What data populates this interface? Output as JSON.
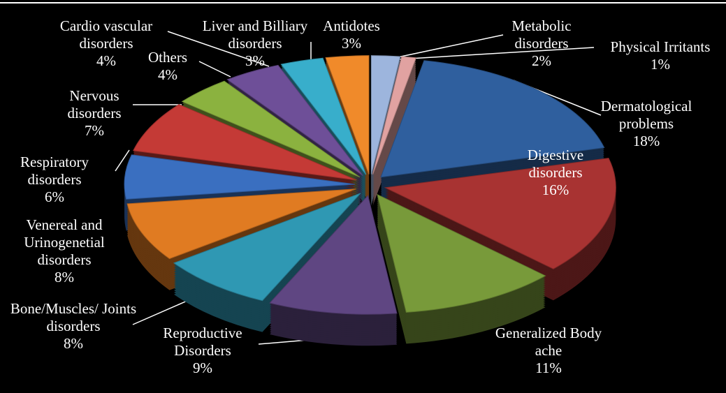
{
  "chart_data": {
    "type": "pie",
    "categories": [
      "Dermatological problems",
      "Digestive disorders",
      "Generalized Body ache",
      "Reproductive Disorders",
      "Bone/Muscles/ Joints disorders",
      "Venereal and Urinogenetial disorders",
      "Respiratory disorders",
      "Nervous disorders",
      "Others",
      "Cardio vascular disorders",
      "Liver and Billiary disorders",
      "Antidotes",
      "Metabolic disorders",
      "Physical Irritants"
    ],
    "values": [
      18,
      16,
      11,
      9,
      8,
      8,
      6,
      7,
      4,
      4,
      3,
      3,
      2,
      1
    ],
    "value_labels": [
      "18%",
      "16%",
      "11%",
      "9%",
      "8%",
      "8%",
      "6%",
      "7%",
      "4%",
      "4%",
      "3%",
      "3%",
      "2%",
      "1%"
    ],
    "colors": [
      "#2f5f9e",
      "#a83332",
      "#789a3a",
      "#5f4682",
      "#2f98b3",
      "#e07b22",
      "#3a6fc0",
      "#c43a36",
      "#8bb23f",
      "#6e4f98",
      "#38aecb",
      "#f08a2a",
      "#9db5dd",
      "#e1a2a1"
    ]
  }
}
